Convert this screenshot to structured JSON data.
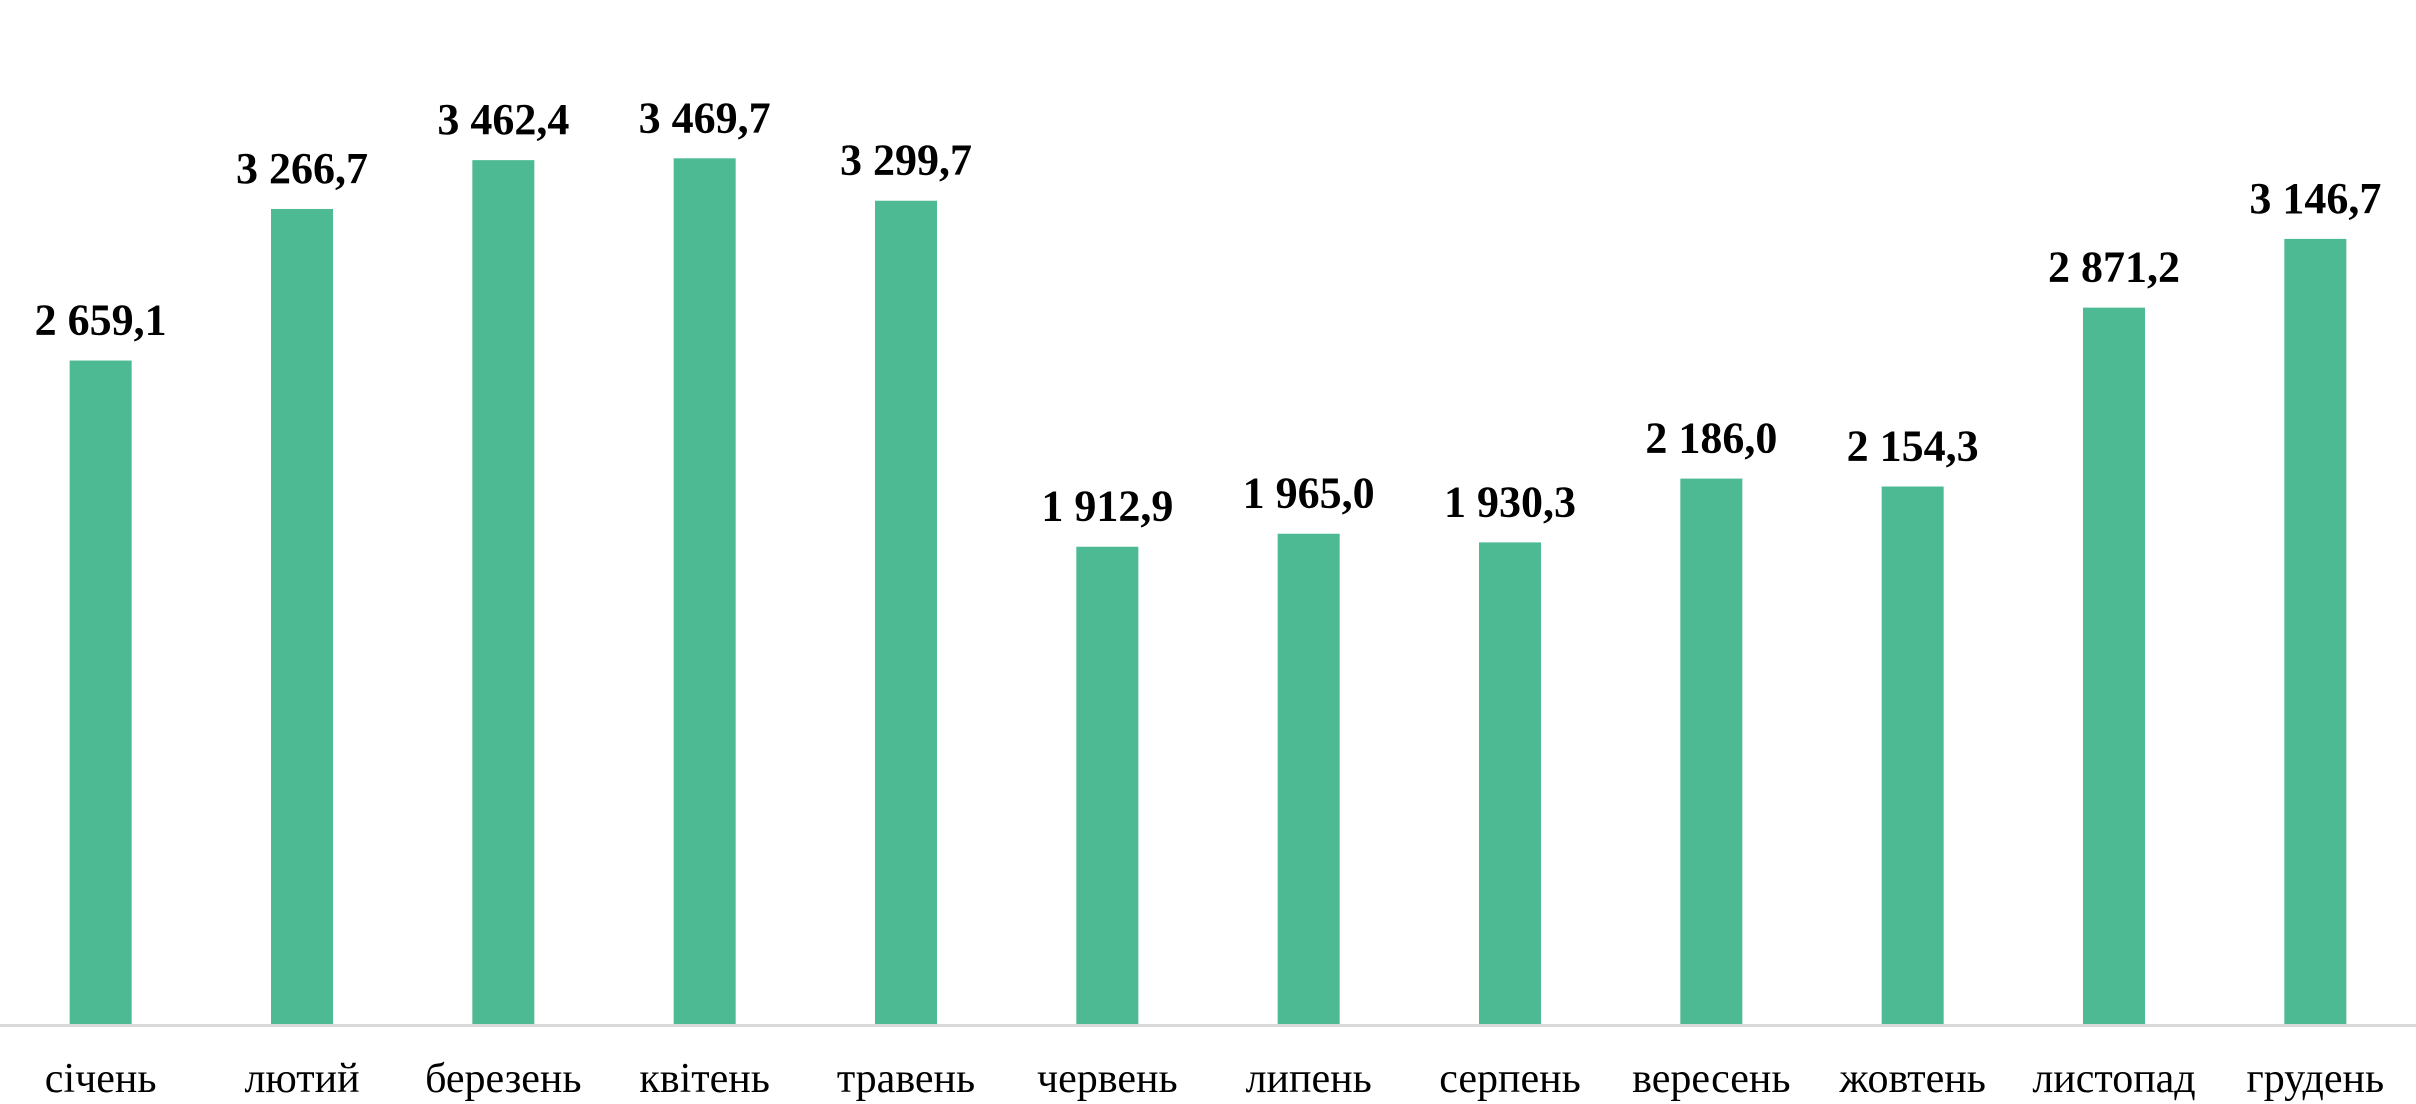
{
  "chart_data": {
    "type": "bar",
    "categories": [
      "січень",
      "лютий",
      "березень",
      "квітень",
      "травень",
      "червень",
      "липень",
      "серпень",
      "вересень",
      "жовтень",
      "листопад",
      "грудень"
    ],
    "values": [
      2659.1,
      3266.7,
      3462.4,
      3469.7,
      3299.7,
      1912.9,
      1965.0,
      1930.3,
      2186.0,
      2154.3,
      2871.2,
      3146.7
    ],
    "value_labels": [
      "2 659,1",
      "3 266,7",
      "3 462,4",
      "3 469,7",
      "3 299,7",
      "1 912,9",
      "1 965,0",
      "1 930,3",
      "2 186,0",
      "2 154,3",
      "2 871,2",
      "3 146,7"
    ],
    "title": "",
    "xlabel": "",
    "ylabel": "",
    "ylim": [
      0,
      3600
    ],
    "grid": false,
    "legend": "none",
    "colors": {
      "bar": "#4dba93",
      "axis": "#d9d9d9",
      "text": "#000000"
    }
  }
}
